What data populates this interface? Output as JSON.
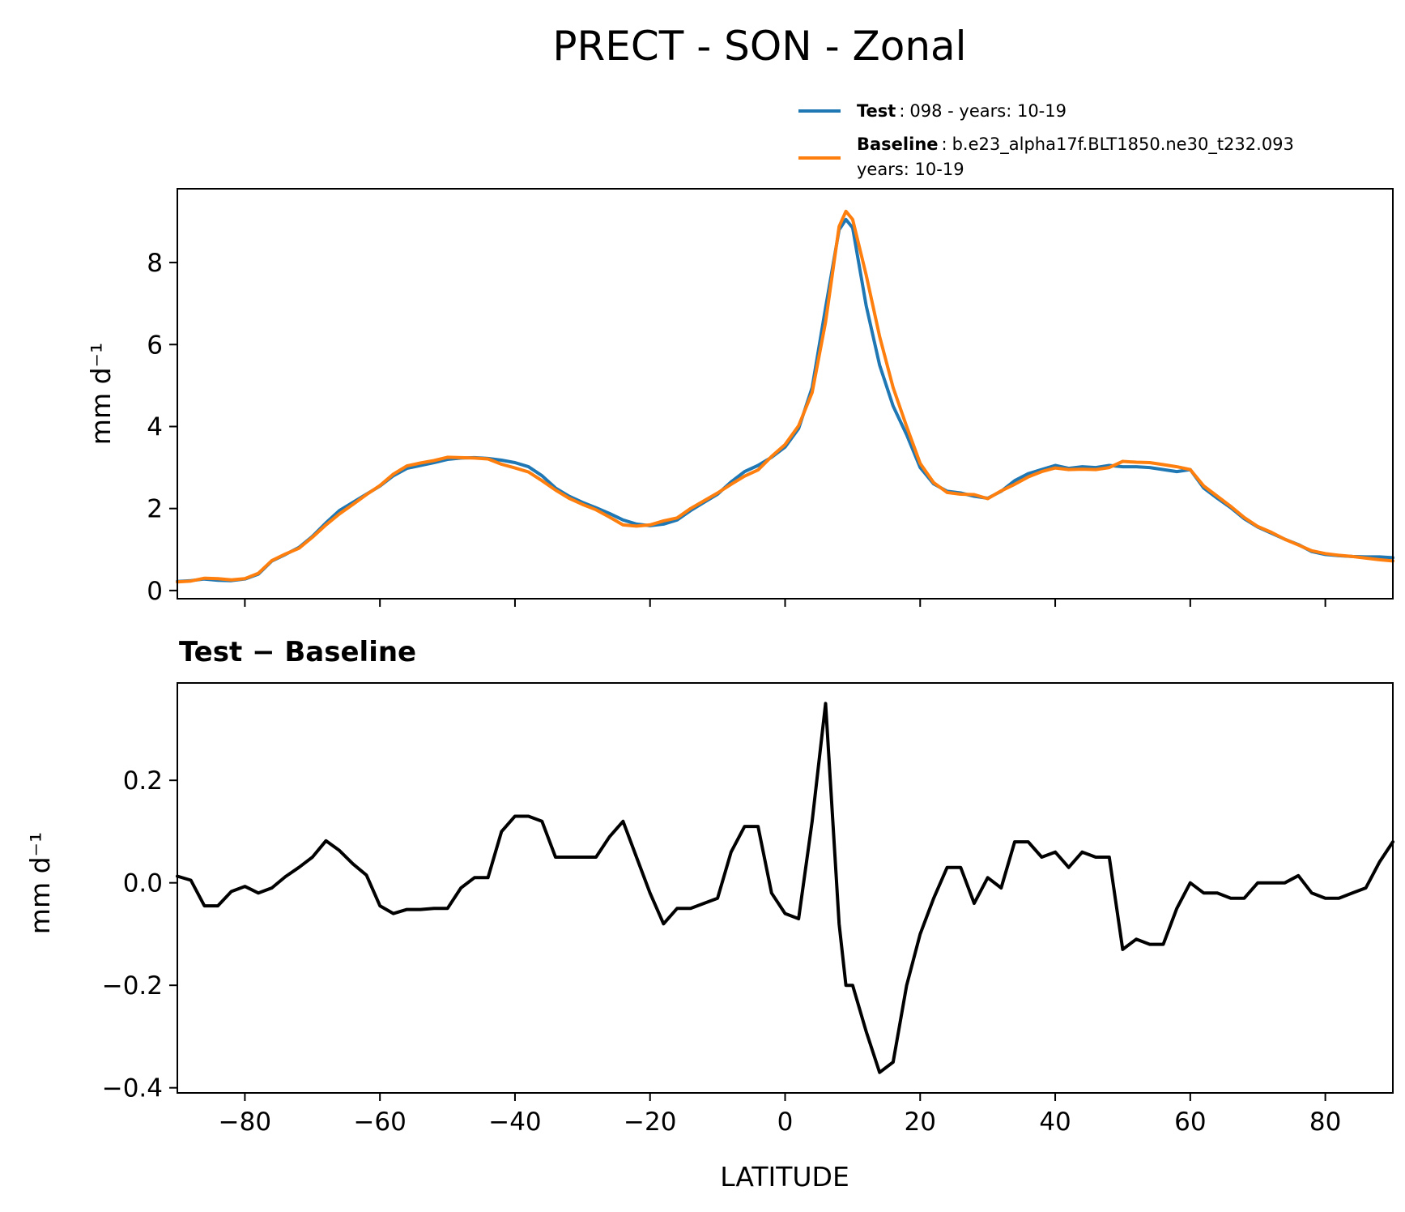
{
  "chart_data": {
    "type": "line",
    "title": "PRECT - SON - Zonal",
    "x": [
      -90,
      -88,
      -86,
      -84,
      -82,
      -80,
      -78,
      -76,
      -74,
      -72,
      -70,
      -68,
      -66,
      -64,
      -62,
      -60,
      -58,
      -56,
      -54,
      -52,
      -50,
      -48,
      -46,
      -44,
      -42,
      -40,
      -38,
      -36,
      -34,
      -32,
      -30,
      -28,
      -26,
      -24,
      -22,
      -20,
      -18,
      -16,
      -14,
      -12,
      -10,
      -8,
      -6,
      -4,
      -2,
      0,
      2,
      4,
      6,
      8,
      9,
      10,
      12,
      14,
      16,
      18,
      20,
      22,
      24,
      26,
      28,
      30,
      32,
      34,
      36,
      38,
      40,
      42,
      44,
      46,
      48,
      50,
      52,
      54,
      56,
      58,
      60,
      62,
      64,
      66,
      68,
      70,
      72,
      74,
      76,
      78,
      80,
      82,
      84,
      86,
      88,
      90
    ],
    "panels": [
      {
        "ylabel": "mm d⁻¹",
        "ylim": [
          -0.2,
          9.8
        ],
        "yticks": [
          0,
          2,
          4,
          6,
          8
        ],
        "ytick_labels": [
          "0",
          "2",
          "4",
          "6",
          "8"
        ],
        "legend": {
          "position": "above plot, right",
          "entries": [
            {
              "name": "Test",
              "separator": ":",
              "text": "098 - years: 10-19",
              "text2": ""
            },
            {
              "name": "Baseline",
              "separator": ":",
              "text": "b.e23_alpha17f.BLT1850.ne30_t232.093",
              "text2": "years: 10-19"
            }
          ]
        },
        "series": [
          {
            "name": "Test",
            "color": "#1f77b4",
            "values": [
              0.22,
              0.24,
              0.28,
              0.25,
              0.24,
              0.28,
              0.4,
              0.72,
              0.88,
              1.05,
              1.32,
              1.65,
              1.95,
              2.15,
              2.35,
              2.55,
              2.8,
              2.98,
              3.05,
              3.12,
              3.2,
              3.23,
              3.24,
              3.22,
              3.18,
              3.12,
              3.02,
              2.8,
              2.5,
              2.3,
              2.15,
              2.02,
              1.88,
              1.72,
              1.62,
              1.58,
              1.62,
              1.72,
              1.95,
              2.15,
              2.35,
              2.65,
              2.9,
              3.05,
              3.25,
              3.5,
              3.95,
              4.95,
              6.9,
              8.8,
              9.05,
              8.85,
              6.95,
              5.5,
              4.5,
              3.8,
              3.0,
              2.6,
              2.42,
              2.38,
              2.3,
              2.25,
              2.42,
              2.68,
              2.85,
              2.95,
              3.05,
              2.98,
              3.02,
              3.0,
              3.05,
              3.02,
              3.02,
              3.0,
              2.95,
              2.9,
              2.95,
              2.5,
              2.25,
              2.02,
              1.75,
              1.55,
              1.4,
              1.25,
              1.12,
              0.95,
              0.88,
              0.85,
              0.83,
              0.82,
              0.82,
              0.8
            ]
          },
          {
            "name": "Baseline",
            "color": "#ff7f0e",
            "values": [
              0.21,
              0.23,
              0.3,
              0.29,
              0.26,
              0.29,
              0.42,
              0.73,
              0.89,
              1.03,
              1.3,
              1.6,
              1.87,
              2.1,
              2.34,
              2.56,
              2.84,
              3.04,
              3.11,
              3.17,
              3.25,
              3.24,
              3.23,
              3.21,
              3.08,
              2.99,
              2.89,
              2.68,
              2.45,
              2.25,
              2.1,
              1.97,
              1.79,
              1.6,
              1.57,
              1.6,
              1.7,
              1.77,
              2.0,
              2.19,
              2.38,
              2.59,
              2.79,
              2.94,
              3.27,
              3.56,
              4.02,
              4.83,
              6.55,
              8.88,
              9.25,
              9.05,
              7.7,
              6.2,
              4.95,
              4.0,
              3.1,
              2.63,
              2.39,
              2.35,
              2.34,
              2.24,
              2.43,
              2.59,
              2.77,
              2.9,
              2.99,
              2.95,
              2.96,
              2.95,
              3.0,
              3.15,
              3.13,
              3.12,
              3.07,
              3.02,
              2.95,
              2.55,
              2.3,
              2.05,
              1.78,
              1.56,
              1.42,
              1.25,
              1.11,
              0.97,
              0.9,
              0.86,
              0.83,
              0.79,
              0.75,
              0.72
            ]
          }
        ]
      },
      {
        "subtitle": "Test − Baseline",
        "ylabel": "mm d⁻¹",
        "ylim": [
          -0.41,
          0.39
        ],
        "yticks": [
          -0.4,
          -0.2,
          0.0,
          0.2
        ],
        "ytick_labels": [
          "−0.4",
          "−0.2",
          "0.0",
          "0.2"
        ],
        "series": [
          {
            "name": "Test − Baseline",
            "color": "#000000",
            "values": [
              0.013,
              0.005,
              -0.045,
              -0.045,
              -0.017,
              -0.007,
              -0.02,
              -0.01,
              0.012,
              0.03,
              0.05,
              0.082,
              0.063,
              0.037,
              0.015,
              -0.045,
              -0.06,
              -0.052,
              -0.052,
              -0.05,
              -0.05,
              -0.01,
              0.01,
              0.01,
              0.1,
              0.13,
              0.13,
              0.12,
              0.05,
              0.05,
              0.05,
              0.05,
              0.09,
              0.12,
              0.05,
              -0.02,
              -0.08,
              -0.05,
              -0.05,
              -0.04,
              -0.03,
              0.06,
              0.11,
              0.11,
              -0.02,
              -0.06,
              -0.07,
              0.12,
              0.35,
              -0.08,
              -0.2,
              -0.2,
              -0.29,
              -0.37,
              -0.35,
              -0.2,
              -0.1,
              -0.03,
              0.03,
              0.03,
              -0.04,
              0.01,
              -0.01,
              0.08,
              0.08,
              0.05,
              0.06,
              0.03,
              0.06,
              0.05,
              0.05,
              -0.13,
              -0.11,
              -0.12,
              -0.12,
              -0.05,
              0.0,
              -0.02,
              -0.02,
              -0.03,
              -0.03,
              0.0,
              0.0,
              0.0,
              0.014,
              -0.02,
              -0.03,
              -0.03,
              -0.02,
              -0.01,
              0.04,
              0.08
            ]
          }
        ]
      }
    ],
    "xlabel": "LATITUDE",
    "xlim": [
      -90,
      90
    ],
    "xticks": [
      -80,
      -60,
      -40,
      -20,
      0,
      20,
      40,
      60,
      80
    ],
    "xtick_labels": [
      "−80",
      "−60",
      "−40",
      "−20",
      "0",
      "20",
      "40",
      "60",
      "80"
    ],
    "grid": false
  }
}
